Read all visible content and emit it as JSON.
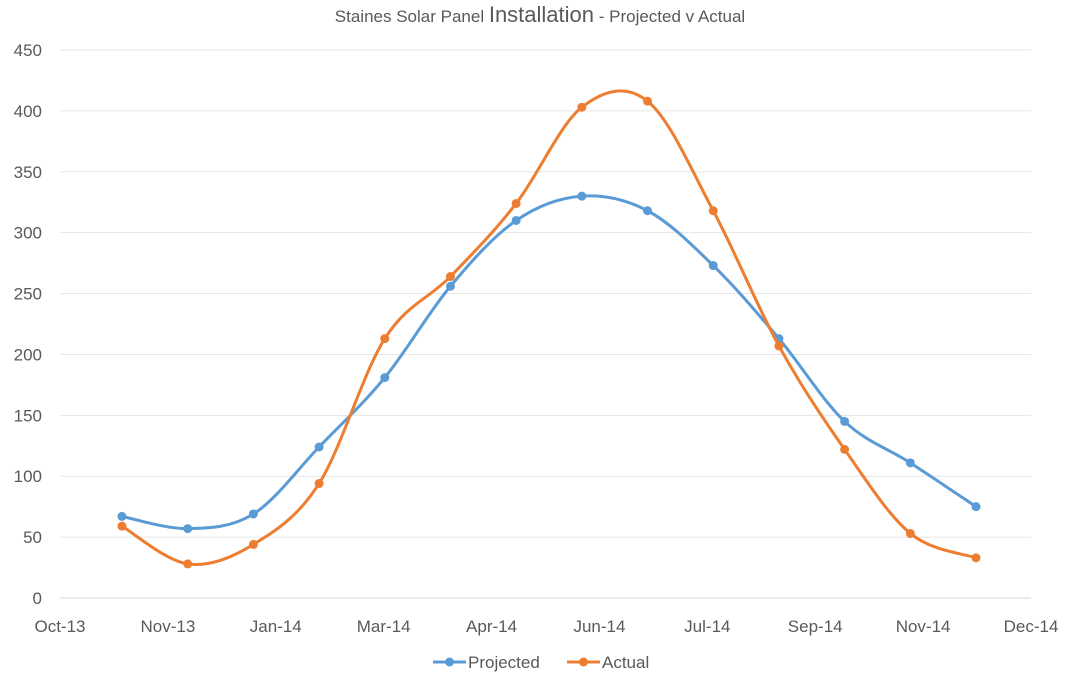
{
  "chart_data": {
    "type": "line",
    "title_parts": [
      "Staines Solar Panel ",
      "Installation",
      " - Projected v Actual"
    ],
    "xlabel": "",
    "ylabel": "",
    "x_tick_labels": [
      "Oct-13",
      "Nov-13",
      "Jan-14",
      "Mar-14",
      "Apr-14",
      "Jun-14",
      "Jul-14",
      "Sep-14",
      "Nov-14",
      "Dec-14"
    ],
    "y_ticks": [
      0,
      50,
      100,
      150,
      200,
      250,
      300,
      350,
      400,
      450
    ],
    "ylim": [
      0,
      450
    ],
    "grid": true,
    "smooth": true,
    "legend": "bottom",
    "series": [
      {
        "name": "Projected",
        "color": "#5B9BD5",
        "values": [
          67,
          57,
          69,
          124,
          181,
          256,
          310,
          330,
          318,
          273,
          213,
          145,
          111,
          75
        ]
      },
      {
        "name": "Actual",
        "color": "#ED7D31",
        "values": [
          59,
          28,
          44,
          94,
          213,
          264,
          324,
          403,
          408,
          318,
          207,
          122,
          53,
          33
        ]
      }
    ]
  }
}
